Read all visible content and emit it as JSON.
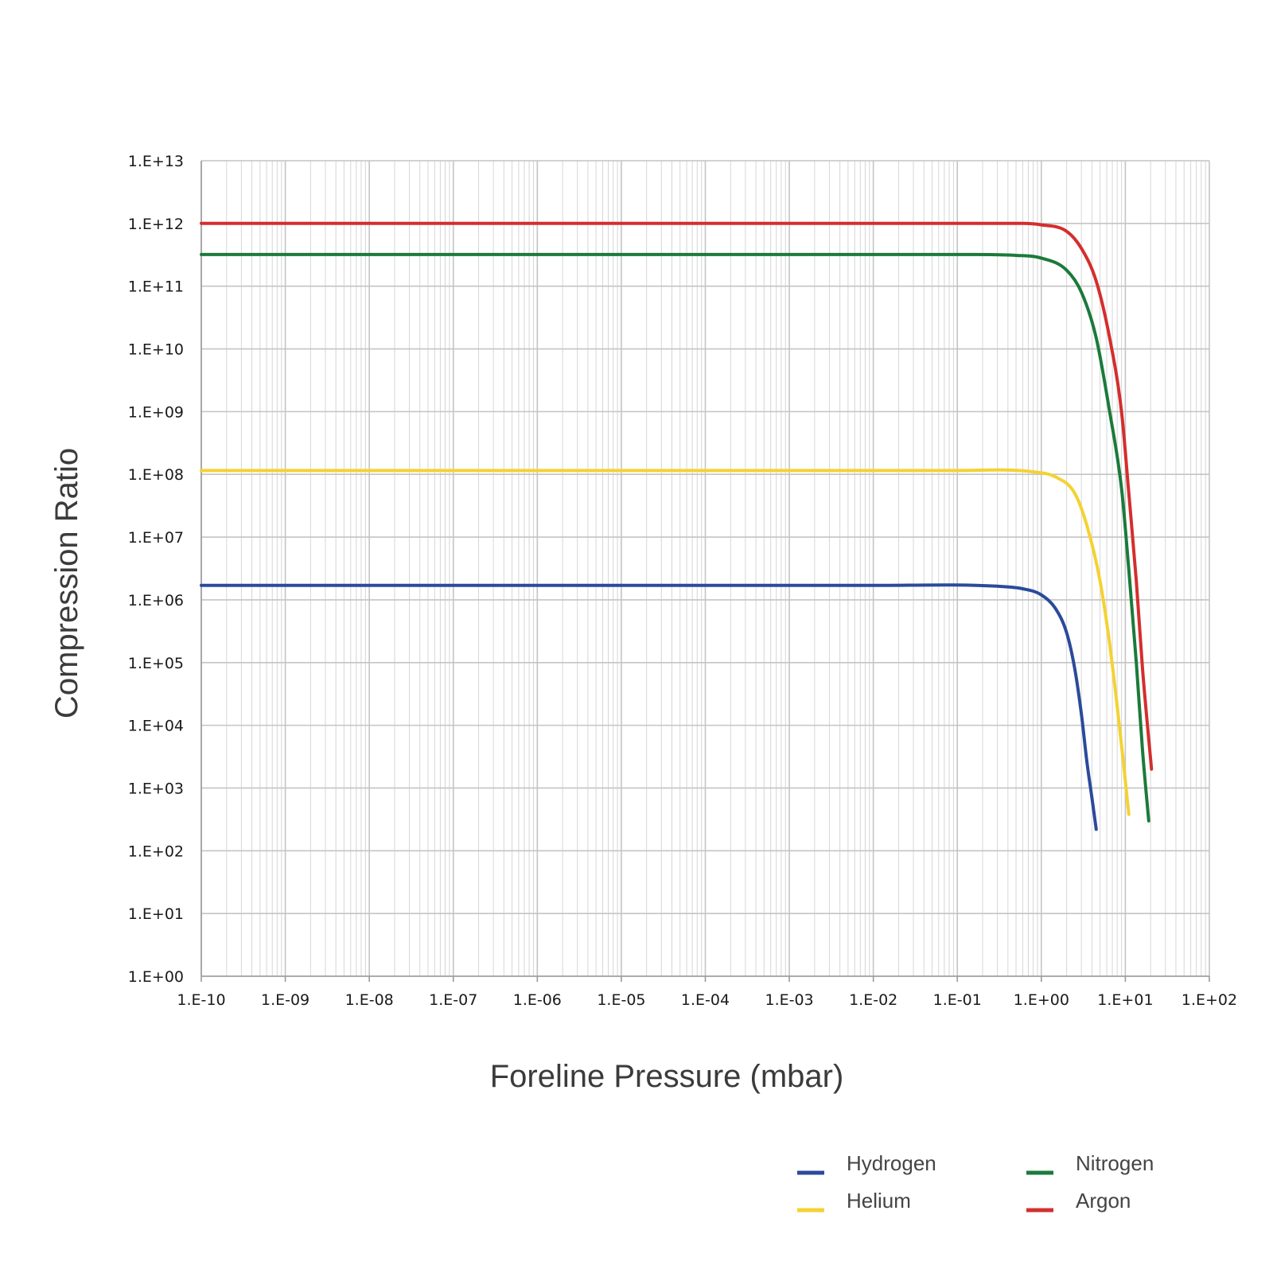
{
  "chart_data": {
    "type": "line",
    "title": "",
    "xlabel": "Foreline Pressure (mbar)",
    "ylabel": "Compression Ratio",
    "xscale": "log",
    "yscale": "log",
    "xlim": [
      1e-10,
      100
    ],
    "ylim": [
      1,
      10000000000000.0
    ],
    "x_ticks": [
      "1.E-10",
      "1.E-09",
      "1.E-08",
      "1.E-07",
      "1.E-06",
      "1.E-05",
      "1.E-04",
      "1.E-03",
      "1.E-02",
      "1.E-01",
      "1.E+00",
      "1.E+01",
      "1.E+02"
    ],
    "y_ticks": [
      "1.E+00",
      "1.E+01",
      "1.E+02",
      "1.E+03",
      "1.E+04",
      "1.E+05",
      "1.E+06",
      "1.E+07",
      "1.E+08",
      "1.E+09",
      "1.E+10",
      "1.E+11",
      "1.E+12",
      "1.E+13"
    ],
    "grid": true,
    "legend_position": "bottom-right",
    "series": [
      {
        "name": "Hydrogen",
        "color": "#2b4a9b",
        "points": [
          [
            1e-10,
            1700000.0
          ],
          [
            0.01,
            1700000.0
          ],
          [
            0.3,
            1650000.0
          ],
          [
            0.6,
            1500000.0
          ],
          [
            1.0,
            1200000.0
          ],
          [
            1.5,
            700000.0
          ],
          [
            2.0,
            300000.0
          ],
          [
            2.5,
            80000.0
          ],
          [
            3.0,
            15000.0
          ],
          [
            3.5,
            2500.0
          ],
          [
            4.0,
            700
          ],
          [
            4.5,
            220
          ]
        ]
      },
      {
        "name": "Helium",
        "color": "#f4d232",
        "points": [
          [
            1e-10,
            115000000.0
          ],
          [
            0.1,
            115000000.0
          ],
          [
            0.8,
            110000000.0
          ],
          [
            1.5,
            90000000.0
          ],
          [
            2.5,
            50000000.0
          ],
          [
            3.5,
            15000000.0
          ],
          [
            5.0,
            2000000.0
          ],
          [
            6.5,
            200000.0
          ],
          [
            8.0,
            20000.0
          ],
          [
            9.5,
            2500.0
          ],
          [
            11.0,
            380
          ]
        ]
      },
      {
        "name": "Nitrogen",
        "color": "#1b7a3a",
        "points": [
          [
            1e-10,
            320000000000.0
          ],
          [
            0.1,
            320000000000.0
          ],
          [
            0.5,
            310000000000.0
          ],
          [
            1.0,
            280000000000.0
          ],
          [
            2.0,
            180000000000.0
          ],
          [
            3.0,
            80000000000.0
          ],
          [
            4.5,
            15000000000.0
          ],
          [
            6.5,
            1000000000.0
          ],
          [
            9.0,
            60000000.0
          ],
          [
            11.0,
            3000000.0
          ],
          [
            13.5,
            100000.0
          ],
          [
            16.0,
            4000.0
          ],
          [
            19.0,
            300
          ]
        ]
      },
      {
        "name": "Argon",
        "color": "#d42e2e",
        "points": [
          [
            1e-10,
            1000000000000.0
          ],
          [
            0.1,
            1000000000000.0
          ],
          [
            0.6,
            1000000000000.0
          ],
          [
            1.0,
            950000000000.0
          ],
          [
            2.0,
            750000000000.0
          ],
          [
            3.0,
            400000000000.0
          ],
          [
            4.5,
            120000000000.0
          ],
          [
            6.5,
            15000000000.0
          ],
          [
            9.0,
            1000000000.0
          ],
          [
            11.0,
            50000000.0
          ],
          [
            13.5,
            2000000.0
          ],
          [
            16.0,
            80000.0
          ],
          [
            19.0,
            6000.0
          ],
          [
            20.5,
            2000.0
          ]
        ]
      }
    ]
  }
}
